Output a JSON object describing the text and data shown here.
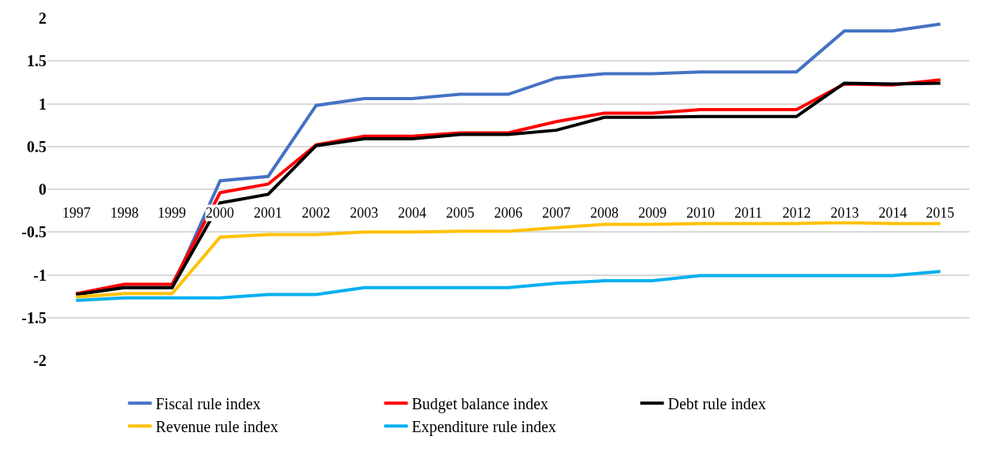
{
  "chart_data": {
    "type": "line",
    "categories": [
      "1997",
      "1998",
      "1999",
      "2000",
      "2001",
      "2002",
      "2003",
      "2004",
      "2005",
      "2006",
      "2007",
      "2008",
      "2009",
      "2010",
      "2011",
      "2012",
      "2013",
      "2014",
      "2015"
    ],
    "series": [
      {
        "name": "Fiscal rule index",
        "color": "#4472c4",
        "values": [
          -1.22,
          -1.15,
          -1.15,
          0.1,
          0.15,
          0.98,
          1.06,
          1.06,
          1.11,
          1.11,
          1.3,
          1.35,
          1.35,
          1.37,
          1.37,
          1.37,
          1.85,
          1.85,
          1.93
        ]
      },
      {
        "name": "Budget balance index",
        "color": "#ff0000",
        "values": [
          -1.22,
          -1.11,
          -1.11,
          -0.04,
          0.06,
          0.52,
          0.62,
          0.62,
          0.66,
          0.66,
          0.79,
          0.89,
          0.89,
          0.93,
          0.93,
          0.93,
          1.23,
          1.22,
          1.28
        ]
      },
      {
        "name": "Debt rule index",
        "color": "#000000",
        "values": [
          -1.23,
          -1.15,
          -1.15,
          -0.16,
          -0.06,
          0.51,
          0.59,
          0.59,
          0.64,
          0.64,
          0.69,
          0.84,
          0.84,
          0.85,
          0.85,
          0.85,
          1.24,
          1.23,
          1.24
        ]
      },
      {
        "name": "Revenue rule index",
        "color": "#ffc000",
        "values": [
          -1.26,
          -1.22,
          -1.22,
          -0.56,
          -0.53,
          -0.53,
          -0.5,
          -0.5,
          -0.49,
          -0.49,
          -0.45,
          -0.41,
          -0.41,
          -0.4,
          -0.4,
          -0.4,
          -0.39,
          -0.4,
          -0.4
        ]
      },
      {
        "name": "Expenditure rule index",
        "color": "#00b0f0",
        "values": [
          -1.3,
          -1.27,
          -1.27,
          -1.27,
          -1.23,
          -1.23,
          -1.15,
          -1.15,
          -1.15,
          -1.15,
          -1.1,
          -1.07,
          -1.07,
          -1.01,
          -1.01,
          -1.01,
          -1.01,
          -1.01,
          -0.96
        ]
      }
    ],
    "ylim": [
      -2,
      2
    ],
    "yticks": [
      -2,
      -1.5,
      -1,
      -0.5,
      0,
      0.5,
      1,
      1.5,
      2
    ],
    "grid": "y",
    "legend": "bottom",
    "marker": "none",
    "line_style": "solid"
  }
}
